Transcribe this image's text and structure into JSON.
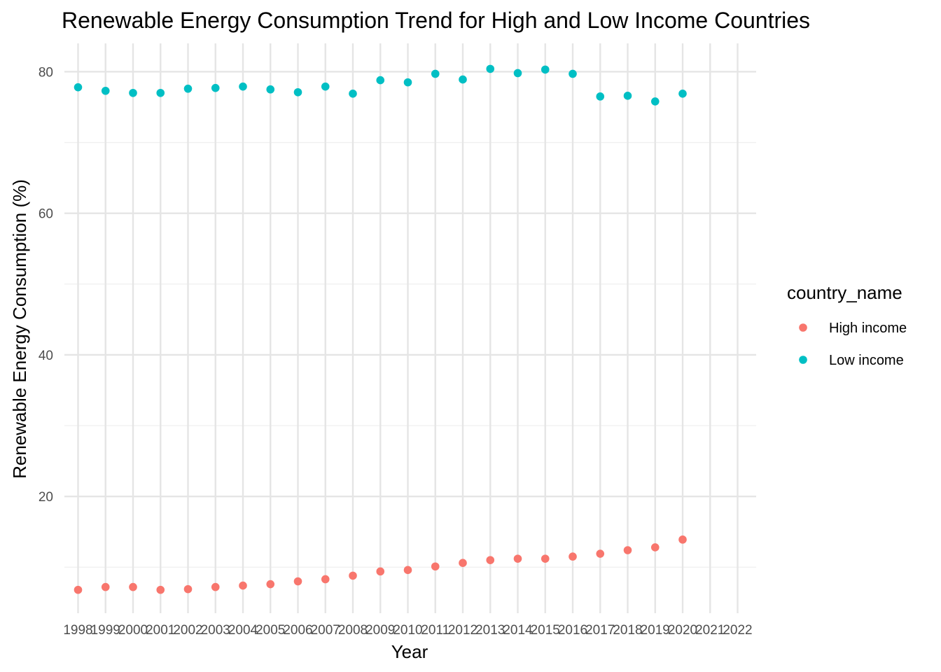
{
  "chart_data": {
    "type": "scatter",
    "title": "Renewable Energy Consumption Trend for High and Low Income Countries",
    "xlabel": "Year",
    "ylabel": "Renewable Energy Consumption (%)",
    "x_categories": [
      "1998",
      "1999",
      "2000",
      "2001",
      "2002",
      "2003",
      "2004",
      "2005",
      "2006",
      "2007",
      "2008",
      "2009",
      "2010",
      "2011",
      "2012",
      "2013",
      "2014",
      "2015",
      "2016",
      "2017",
      "2018",
      "2019",
      "2020",
      "2021",
      "2022"
    ],
    "y_ticks": [
      20,
      40,
      60,
      80
    ],
    "ylim": [
      3.5,
      84
    ],
    "grid": true,
    "legend": {
      "title": "country_name",
      "placement": "right"
    },
    "series": [
      {
        "name": "High income",
        "color": "#F8766D",
        "x": [
          "1998",
          "1999",
          "2000",
          "2001",
          "2002",
          "2003",
          "2004",
          "2005",
          "2006",
          "2007",
          "2008",
          "2009",
          "2010",
          "2011",
          "2012",
          "2013",
          "2014",
          "2015",
          "2016",
          "2017",
          "2018",
          "2019",
          "2020"
        ],
        "values": [
          6.8,
          7.2,
          7.2,
          6.8,
          6.9,
          7.2,
          7.4,
          7.6,
          8.0,
          8.3,
          8.8,
          9.4,
          9.6,
          10.1,
          10.6,
          11.0,
          11.2,
          11.2,
          11.5,
          11.9,
          12.4,
          12.8,
          13.9
        ]
      },
      {
        "name": "Low income",
        "color": "#00BFC4",
        "x": [
          "1998",
          "1999",
          "2000",
          "2001",
          "2002",
          "2003",
          "2004",
          "2005",
          "2006",
          "2007",
          "2008",
          "2009",
          "2010",
          "2011",
          "2012",
          "2013",
          "2014",
          "2015",
          "2016",
          "2017",
          "2018",
          "2019",
          "2020"
        ],
        "values": [
          77.8,
          77.3,
          77.0,
          77.0,
          77.6,
          77.7,
          77.9,
          77.5,
          77.1,
          77.9,
          76.9,
          78.8,
          78.5,
          79.7,
          78.9,
          80.4,
          79.8,
          80.3,
          79.7,
          76.5,
          76.6,
          75.8,
          76.9
        ]
      }
    ]
  }
}
